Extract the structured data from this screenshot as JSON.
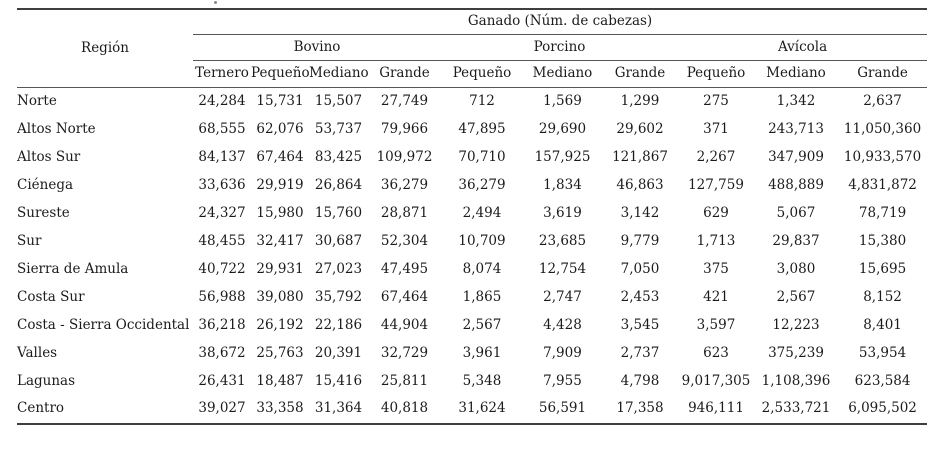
{
  "table": {
    "region_header": "Región",
    "span_header": "Ganado (Núm. de cabezas)",
    "groups": [
      {
        "key": "bovino",
        "label": "Bovino",
        "span": 4
      },
      {
        "key": "porcino",
        "label": "Porcino",
        "span": 3
      },
      {
        "key": "avicola",
        "label": "Avícola",
        "span": 3
      }
    ],
    "sub_headers": [
      "Ternero",
      "Pequeño",
      "Mediano",
      "Grande",
      "Pequeño",
      "Mediano",
      "Grande",
      "Pequeño",
      "Mediano",
      "Grande"
    ],
    "rows": [
      {
        "region": "Norte",
        "values": [
          "24,284",
          "15,731",
          "15,507",
          "27,749",
          "712",
          "1,569",
          "1,299",
          "275",
          "1,342",
          "2,637"
        ]
      },
      {
        "region": "Altos Norte",
        "values": [
          "68,555",
          "62,076",
          "53,737",
          "79,966",
          "47,895",
          "29,690",
          "29,602",
          "371",
          "243,713",
          "11,050,360"
        ]
      },
      {
        "region": "Altos Sur",
        "values": [
          "84,137",
          "67,464",
          "83,425",
          "109,972",
          "70,710",
          "157,925",
          "121,867",
          "2,267",
          "347,909",
          "10,933,570"
        ]
      },
      {
        "region": "Ciénega",
        "values": [
          "33,636",
          "29,919",
          "26,864",
          "36,279",
          "36,279",
          "1,834",
          "46,863",
          "127,759",
          "488,889",
          "4,831,872"
        ]
      },
      {
        "region": "Sureste",
        "values": [
          "24,327",
          "15,980",
          "15,760",
          "28,871",
          "2,494",
          "3,619",
          "3,142",
          "629",
          "5,067",
          "78,719"
        ]
      },
      {
        "region": "Sur",
        "values": [
          "48,455",
          "32,417",
          "30,687",
          "52,304",
          "10,709",
          "23,685",
          "9,779",
          "1,713",
          "29,837",
          "15,380"
        ]
      },
      {
        "region": "Sierra de Amula",
        "values": [
          "40,722",
          "29,931",
          "27,023",
          "47,495",
          "8,074",
          "12,754",
          "7,050",
          "375",
          "3,080",
          "15,695"
        ]
      },
      {
        "region": "Costa Sur",
        "values": [
          "56,988",
          "39,080",
          "35,792",
          "67,464",
          "1,865",
          "2,747",
          "2,453",
          "421",
          "2,567",
          "8,152"
        ]
      },
      {
        "region": "Costa - Sierra Occidental",
        "values": [
          "36,218",
          "26,192",
          "22,186",
          "44,904",
          "2,567",
          "4,428",
          "3,545",
          "3,597",
          "12,223",
          "8,401"
        ]
      },
      {
        "region": "Valles",
        "values": [
          "38,672",
          "25,763",
          "20,391",
          "32,729",
          "3,961",
          "7,909",
          "2,737",
          "623",
          "375,239",
          "53,954"
        ]
      },
      {
        "region": "Lagunas",
        "values": [
          "26,431",
          "18,487",
          "15,416",
          "25,811",
          "5,348",
          "7,955",
          "4,798",
          "9,017,305",
          "1,108,396",
          "623,584"
        ]
      },
      {
        "region": "Centro",
        "values": [
          "39,027",
          "33,358",
          "31,364",
          "40,818",
          "31,624",
          "56,591",
          "17,358",
          "946,111",
          "2,533,721",
          "6,095,502"
        ]
      }
    ]
  }
}
